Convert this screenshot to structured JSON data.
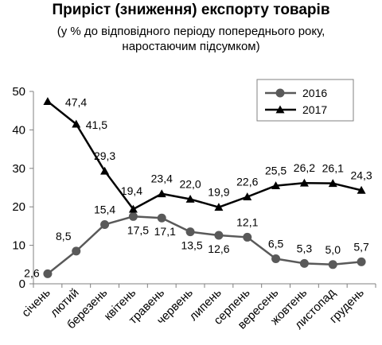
{
  "title": "Приріст (зниження) експорту товарів",
  "subtitle_line1": "(у % до відповідного періоду попереднього року,",
  "subtitle_line2": "наростаючим підсумком)",
  "chart_data": {
    "type": "line",
    "title": "Приріст (зниження) експорту товарів",
    "subtitle": "(у % до відповідного періоду попереднього року, наростаючим підсумком)",
    "categories": [
      "січень",
      "лютий",
      "березень",
      "квітень",
      "травень",
      "червень",
      "липень",
      "серпень",
      "вересень",
      "жовтень",
      "листопад",
      "грудень"
    ],
    "ylim": [
      0,
      50
    ],
    "yticks": [
      0,
      10,
      20,
      30,
      40,
      50
    ],
    "grid": false,
    "legend_position": "top-right",
    "series": [
      {
        "name": "2016",
        "marker": "circle",
        "color": "#595959",
        "values": [
          2.6,
          8.5,
          15.4,
          17.5,
          17.1,
          13.5,
          12.6,
          12.1,
          6.5,
          5.3,
          5.0,
          5.7
        ],
        "labels": [
          "2,6",
          "8,5",
          "15,4",
          "17,5",
          "17,1",
          "13,5",
          "12,6",
          "12,1",
          "6,5",
          "5,3",
          "5,0",
          "5,7"
        ]
      },
      {
        "name": "2017",
        "marker": "triangle",
        "color": "#000000",
        "values": [
          47.4,
          41.5,
          29.3,
          19.4,
          23.4,
          22.0,
          19.9,
          22.6,
          25.5,
          26.2,
          26.1,
          24.3
        ],
        "labels": [
          "47,4",
          "41,5",
          "29,3",
          "19,4",
          "23,4",
          "22,0",
          "19,9",
          "22,6",
          "25,5",
          "26,2",
          "26,1",
          "24,3"
        ]
      }
    ]
  }
}
